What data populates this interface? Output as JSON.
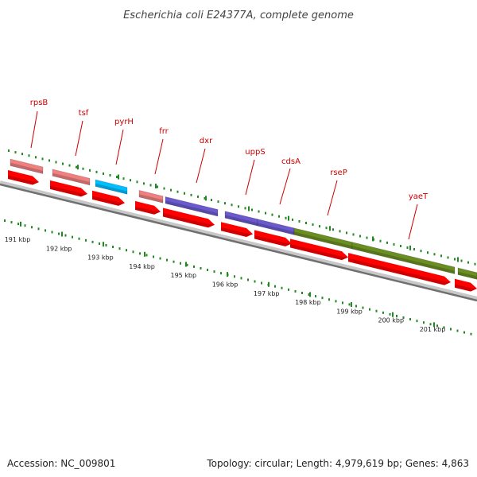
{
  "title": "Escherichia coli E24377A, complete genome",
  "footer": {
    "accession": "Accession: NC_009801",
    "topology": "Topology: circular; Length: 4,979,619 bp; Genes: 4,863"
  },
  "colors": {
    "backbone": "#8a8a8a",
    "dots": "#1f8a1f",
    "label": "#cc0000",
    "cds": "#ff0000",
    "pink": "#f08080",
    "cyan": "#00bfff",
    "purple": "#6a5acd",
    "olive": "#6b8e23"
  },
  "genes": [
    {
      "name": "rpsB",
      "color": "pink"
    },
    {
      "name": "tsf",
      "color": "pink"
    },
    {
      "name": "pyrH",
      "color": "cyan"
    },
    {
      "name": "frr",
      "color": "pink"
    },
    {
      "name": "dxr",
      "color": "purple"
    },
    {
      "name": "uppS",
      "color": "purple"
    },
    {
      "name": "cdsA",
      "color": "purple"
    },
    {
      "name": "rseP",
      "color": "olive"
    },
    {
      "name": "yaeT",
      "color": "olive"
    },
    {
      "name": "",
      "color": "olive"
    }
  ],
  "scale_labels": [
    "191 kbp",
    "192 kbp",
    "193 kbp",
    "194 kbp",
    "195 kbp",
    "196 kbp",
    "197 kbp",
    "198 kbp",
    "199 kbp",
    "200 kbp",
    "201 kbp"
  ]
}
